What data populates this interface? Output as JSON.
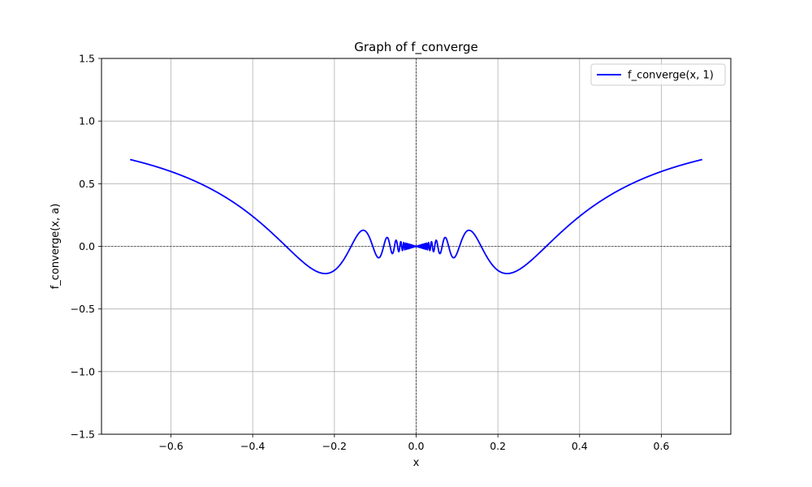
{
  "chart_data": {
    "type": "line",
    "title": "Graph of f_converge",
    "xlabel": "x",
    "ylabel": "f_converge(x, a)",
    "xlim": [
      -0.77,
      0.77
    ],
    "ylim": [
      -1.5,
      1.5
    ],
    "x_ticks": [
      -0.6,
      -0.4,
      -0.2,
      0.0,
      0.2,
      0.4,
      0.6
    ],
    "x_tick_labels": [
      "−0.6",
      "−0.4",
      "−0.2",
      "0.0",
      "0.2",
      "0.4",
      "0.6"
    ],
    "y_ticks": [
      -1.5,
      -1.0,
      -0.5,
      0.0,
      0.5,
      1.0,
      1.5
    ],
    "y_tick_labels": [
      "−1.5",
      "−1.0",
      "−0.5",
      "0.0",
      "0.5",
      "1.0",
      "1.5"
    ],
    "grid": true,
    "reference_lines": {
      "x": 0,
      "y": 0
    },
    "legend": {
      "position": "top-right"
    },
    "series": [
      {
        "name": "f_converge(x, 1)",
        "color": "#0000ff",
        "function": "x*sin(1/x)",
        "x_range": [
          -0.7,
          0.7
        ],
        "samples": 8000
      }
    ]
  }
}
